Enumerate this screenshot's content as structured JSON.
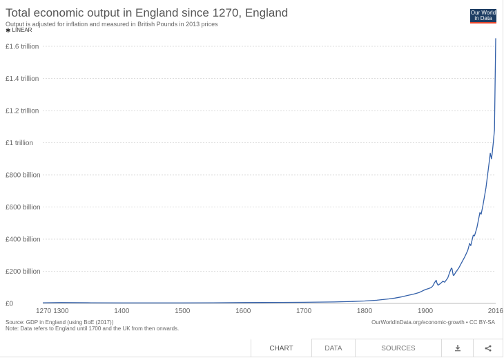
{
  "header": {
    "title": "Total economic output in England since 1270, England",
    "subtitle": "Output is adjusted for inflation and measured in British Pounds in 2013 prices",
    "scale_label": "LINEAR",
    "logo_line1": "Our World",
    "logo_line2": "in Data"
  },
  "footer": {
    "source": "Source: GDP in England (using BoE (2017))",
    "note": "Note: Data refers to England until 1700 and the UK from then onwards.",
    "attribution": "OurWorldInData.org/economic-growth • CC BY-SA"
  },
  "tabs": {
    "chart": "CHART",
    "data": "DATA",
    "sources": "SOURCES",
    "download_icon": "download-icon",
    "share_icon": "share-icon"
  },
  "colors": {
    "line": "#3360a9",
    "grid": "#dddddd",
    "logo_bg": "#1d3d63",
    "logo_accent": "#e8442a"
  },
  "chart_data": {
    "type": "line",
    "title": "Total economic output in England since 1270, England",
    "subtitle": "Output is adjusted for inflation and measured in British Pounds in 2013 prices",
    "xlim": [
      1270,
      2016
    ],
    "ylim": [
      0,
      1650
    ],
    "y_unit": "£ billion",
    "x_ticks": [
      1270,
      1300,
      1400,
      1500,
      1600,
      1700,
      1800,
      1900,
      2016
    ],
    "y_ticks": [
      {
        "value": 0,
        "label": "£0"
      },
      {
        "value": 200,
        "label": "£200 billion"
      },
      {
        "value": 400,
        "label": "£400 billion"
      },
      {
        "value": 600,
        "label": "£600 billion"
      },
      {
        "value": 800,
        "label": "£800 billion"
      },
      {
        "value": 1000,
        "label": "£1 trillion"
      },
      {
        "value": 1200,
        "label": "£1.2 trillion"
      },
      {
        "value": 1400,
        "label": "£1.4 trillion"
      },
      {
        "value": 1600,
        "label": "£1.6 trillion"
      }
    ],
    "grid": true,
    "series": [
      {
        "name": "England",
        "x": [
          1270,
          1300,
          1350,
          1400,
          1450,
          1500,
          1550,
          1600,
          1650,
          1700,
          1750,
          1780,
          1800,
          1820,
          1840,
          1850,
          1860,
          1870,
          1880,
          1890,
          1900,
          1905,
          1910,
          1913,
          1915,
          1918,
          1919,
          1921,
          1925,
          1929,
          1932,
          1937,
          1940,
          1943,
          1944,
          1946,
          1947,
          1950,
          1955,
          1960,
          1965,
          1970,
          1973,
          1975,
          1979,
          1981,
          1985,
          1990,
          1992,
          1995,
          2000,
          2005,
          2007,
          2009,
          2010,
          2012,
          2014,
          2016
        ],
        "values": [
          4,
          5,
          4,
          3,
          3,
          3,
          4,
          5,
          6,
          7,
          9,
          12,
          15,
          20,
          28,
          33,
          40,
          49,
          57,
          68,
          86,
          92,
          99,
          112,
          128,
          144,
          128,
          113,
          124,
          138,
          132,
          158,
          192,
          220,
          216,
          176,
          174,
          193,
          220,
          255,
          290,
          330,
          373,
          360,
          425,
          420,
          470,
          565,
          555,
          610,
          720,
          870,
          935,
          900,
          925,
          1000,
          1080,
          1650
        ]
      }
    ]
  }
}
